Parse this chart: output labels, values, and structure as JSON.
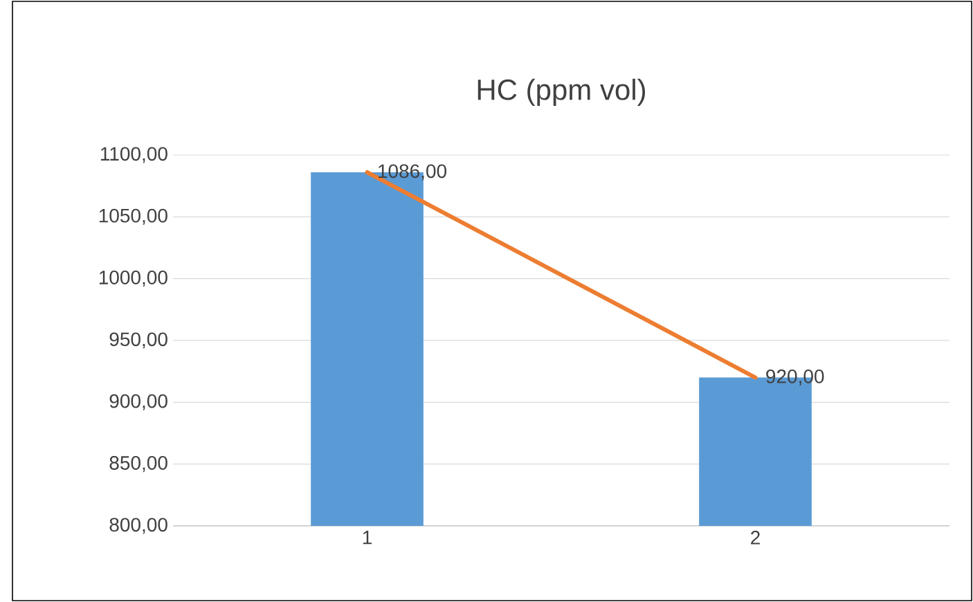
{
  "chart_data": {
    "type": "bar",
    "title": "HC (ppm vol)",
    "categories": [
      "1",
      "2"
    ],
    "series": [
      {
        "color": "#5b9bd5",
        "values": [
          1086,
          920
        ]
      },
      {
        "type": "line",
        "color": "#ed7d31",
        "values": [
          1086,
          920
        ],
        "value_labels": [
          "1086,00",
          "920,00"
        ]
      }
    ],
    "ylim": [
      800,
      1100
    ],
    "yticks": [
      {
        "value": 800,
        "label": "800,00"
      },
      {
        "value": 850,
        "label": "850,00"
      },
      {
        "value": 900,
        "label": "900,00"
      },
      {
        "value": 950,
        "label": "950,00"
      },
      {
        "value": 1000,
        "label": "1000,00"
      },
      {
        "value": 1050,
        "label": "1050,00"
      },
      {
        "value": 1100,
        "label": "1100,00"
      }
    ],
    "grid": "y"
  }
}
